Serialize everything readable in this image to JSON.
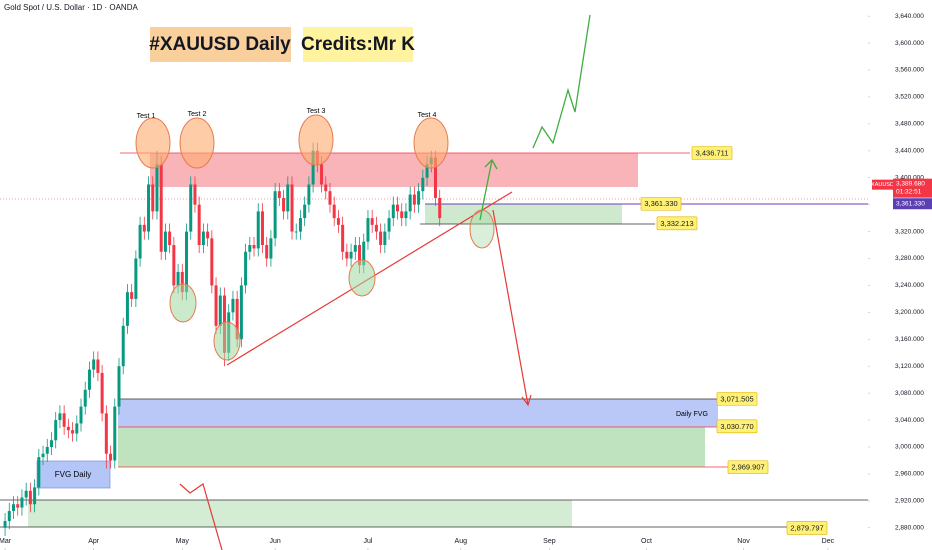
{
  "chart_data": {
    "type": "candlestick",
    "header": "Gold Spot / U.S. Dollar · 1D · OANDA",
    "title": "#XAUUSD Daily",
    "subtitle": "Credits:Mr K",
    "annotations": [
      "Test 1",
      "Test 2",
      "Test 3",
      "Test 4",
      "Daily FVG",
      "FVG Daily"
    ],
    "up_color": "#089981",
    "down_color": "#f23645",
    "grid": false,
    "xlim": [
      -1.2,
      204.5
    ],
    "ylim": [
      2847,
      3664
    ],
    "xticks": [
      {
        "value": 0,
        "label": "Mar"
      },
      {
        "value": 21,
        "label": "Apr"
      },
      {
        "value": 42,
        "label": "May"
      },
      {
        "value": 64,
        "label": "Jun"
      },
      {
        "value": 86,
        "label": "Jul"
      },
      {
        "value": 108,
        "label": "Aug"
      },
      {
        "value": 129,
        "label": "Sep"
      },
      {
        "value": 152,
        "label": "Oct"
      },
      {
        "value": 175,
        "label": "Nov"
      },
      {
        "value": 195,
        "label": "Dec"
      }
    ],
    "yticks": [
      {
        "value": 3640,
        "label": "3,640.000"
      },
      {
        "value": 3600,
        "label": "3,600.000"
      },
      {
        "value": 3560,
        "label": "3,560.000"
      },
      {
        "value": 3520,
        "label": "3,520.000"
      },
      {
        "value": 3480,
        "label": "3,480.000"
      },
      {
        "value": 3440,
        "label": "3,440.000"
      },
      {
        "value": 3400,
        "label": "3,400.000"
      },
      {
        "value": 3360,
        "label": "3,360.000"
      },
      {
        "value": 3320,
        "label": "3,320.000"
      },
      {
        "value": 3280,
        "label": "3,280.000"
      },
      {
        "value": 3240,
        "label": "3,240.000"
      },
      {
        "value": 3200,
        "label": "3,200.000"
      },
      {
        "value": 3160,
        "label": "3,160.000"
      },
      {
        "value": 3120,
        "label": "3,120.000"
      },
      {
        "value": 3080,
        "label": "3,080.000"
      },
      {
        "value": 3040,
        "label": "3,040.000"
      },
      {
        "value": 3000,
        "label": "3,000.000"
      },
      {
        "value": 2960,
        "label": "2,960.000"
      },
      {
        "value": 2920,
        "label": "2,920.000"
      },
      {
        "value": 2880,
        "label": "2,880.000"
      }
    ],
    "levels": [
      {
        "value": 3436.711,
        "label": "3,436.711"
      },
      {
        "value": 3361.33,
        "label": "3,361.330"
      },
      {
        "value": 3332.213,
        "label": "3,332.213"
      },
      {
        "value": 3071.505,
        "label": "3,071.505"
      },
      {
        "value": 3030.77,
        "label": "3,030.770"
      },
      {
        "value": 2969.907,
        "label": "2,969.907"
      },
      {
        "value": 2879.797,
        "label": "2,879.797"
      }
    ],
    "symbol": "XAUUSD",
    "last_price": {
      "value": 3389.68,
      "label": "3,389.680"
    },
    "countdown": "01:32:51",
    "line_price": {
      "value": 3361.33,
      "label": "3,361.330"
    },
    "candles": [
      [
        2880,
        2902,
        2868,
        2890
      ],
      [
        2890,
        2917,
        2878,
        2905
      ],
      [
        2905,
        2927,
        2893,
        2915
      ],
      [
        2915,
        2927,
        2898,
        2910
      ],
      [
        2910,
        2937,
        2898,
        2925
      ],
      [
        2925,
        2947,
        2913,
        2935
      ],
      [
        2935,
        2947,
        2903,
        2915
      ],
      [
        2915,
        2952,
        2903,
        2940
      ],
      [
        2940,
        2997,
        2928,
        2985
      ],
      [
        2985,
        3002,
        2973,
        2990
      ],
      [
        2990,
        3012,
        2978,
        3000
      ],
      [
        3000,
        3022,
        2988,
        3010
      ],
      [
        3010,
        3052,
        2998,
        3040
      ],
      [
        3040,
        3062,
        3028,
        3050
      ],
      [
        3050,
        3062,
        3018,
        3030
      ],
      [
        3030,
        3042,
        3013,
        3025
      ],
      [
        3025,
        3037,
        3008,
        3020
      ],
      [
        3020,
        3047,
        3008,
        3035
      ],
      [
        3035,
        3072,
        3023,
        3060
      ],
      [
        3060,
        3097,
        3048,
        3085
      ],
      [
        3085,
        3127,
        3073,
        3115
      ],
      [
        3115,
        3142,
        3103,
        3130
      ],
      [
        3130,
        3142,
        3098,
        3110
      ],
      [
        3110,
        3122,
        3038,
        3050
      ],
      [
        3050,
        3062,
        2968,
        2990
      ],
      [
        2990,
        3002,
        2968,
        2980
      ],
      [
        2980,
        3072,
        2968,
        3060
      ],
      [
        3060,
        3132,
        3048,
        3120
      ],
      [
        3120,
        3192,
        3108,
        3180
      ],
      [
        3180,
        3242,
        3168,
        3230
      ],
      [
        3230,
        3242,
        3208,
        3220
      ],
      [
        3220,
        3292,
        3208,
        3280
      ],
      [
        3280,
        3342,
        3268,
        3330
      ],
      [
        3330,
        3342,
        3308,
        3320
      ],
      [
        3320,
        3402,
        3308,
        3390
      ],
      [
        3390,
        3402,
        3338,
        3350
      ],
      [
        3350,
        3440,
        3338,
        3420
      ],
      [
        3420,
        3432,
        3278,
        3290
      ],
      [
        3290,
        3332,
        3278,
        3320
      ],
      [
        3320,
        3332,
        3288,
        3300
      ],
      [
        3300,
        3312,
        3228,
        3240
      ],
      [
        3240,
        3272,
        3228,
        3260
      ],
      [
        3260,
        3272,
        3218,
        3230
      ],
      [
        3230,
        3332,
        3218,
        3320
      ],
      [
        3320,
        3402,
        3308,
        3390
      ],
      [
        3390,
        3402,
        3348,
        3360
      ],
      [
        3360,
        3372,
        3288,
        3300
      ],
      [
        3300,
        3332,
        3288,
        3320
      ],
      [
        3320,
        3332,
        3298,
        3310
      ],
      [
        3310,
        3322,
        3228,
        3240
      ],
      [
        3240,
        3252,
        3168,
        3180
      ],
      [
        3180,
        3237,
        3168,
        3225
      ],
      [
        3225,
        3237,
        3120,
        3140
      ],
      [
        3140,
        3212,
        3128,
        3200
      ],
      [
        3200,
        3232,
        3188,
        3220
      ],
      [
        3220,
        3232,
        3148,
        3160
      ],
      [
        3160,
        3252,
        3148,
        3240
      ],
      [
        3240,
        3302,
        3228,
        3290
      ],
      [
        3290,
        3312,
        3278,
        3300
      ],
      [
        3300,
        3312,
        3283,
        3295
      ],
      [
        3295,
        3362,
        3283,
        3350
      ],
      [
        3350,
        3362,
        3288,
        3300
      ],
      [
        3300,
        3312,
        3268,
        3280
      ],
      [
        3280,
        3322,
        3268,
        3310
      ],
      [
        3310,
        3392,
        3298,
        3380
      ],
      [
        3380,
        3392,
        3358,
        3370
      ],
      [
        3370,
        3382,
        3338,
        3350
      ],
      [
        3350,
        3402,
        3338,
        3390
      ],
      [
        3390,
        3402,
        3308,
        3320
      ],
      [
        3320,
        3332,
        3308,
        3320
      ],
      [
        3320,
        3352,
        3308,
        3340
      ],
      [
        3340,
        3372,
        3328,
        3360
      ],
      [
        3360,
        3402,
        3348,
        3390
      ],
      [
        3390,
        3452,
        3378,
        3440
      ],
      [
        3440,
        3452,
        3408,
        3420
      ],
      [
        3420,
        3432,
        3378,
        3390
      ],
      [
        3390,
        3402,
        3368,
        3380
      ],
      [
        3380,
        3392,
        3348,
        3360
      ],
      [
        3360,
        3372,
        3328,
        3340
      ],
      [
        3340,
        3352,
        3318,
        3330
      ],
      [
        3330,
        3342,
        3278,
        3290
      ],
      [
        3290,
        3302,
        3268,
        3280
      ],
      [
        3280,
        3302,
        3268,
        3290
      ],
      [
        3290,
        3312,
        3278,
        3300
      ],
      [
        3300,
        3312,
        3258,
        3270
      ],
      [
        3270,
        3317,
        3258,
        3305
      ],
      [
        3305,
        3352,
        3293,
        3340
      ],
      [
        3340,
        3352,
        3318,
        3330
      ],
      [
        3330,
        3342,
        3308,
        3320
      ],
      [
        3320,
        3332,
        3288,
        3300
      ],
      [
        3300,
        3332,
        3288,
        3320
      ],
      [
        3320,
        3352,
        3308,
        3340
      ],
      [
        3340,
        3372,
        3328,
        3360
      ],
      [
        3360,
        3372,
        3338,
        3350
      ],
      [
        3350,
        3362,
        3328,
        3340
      ],
      [
        3340,
        3362,
        3328,
        3350
      ],
      [
        3350,
        3387,
        3338,
        3375
      ],
      [
        3375,
        3387,
        3348,
        3360
      ],
      [
        3360,
        3392,
        3348,
        3380
      ],
      [
        3380,
        3412,
        3368,
        3400
      ],
      [
        3400,
        3432,
        3388,
        3420
      ],
      [
        3420,
        3440,
        3408,
        3430
      ],
      [
        3430,
        3440,
        3358,
        3370
      ],
      [
        3370,
        3382,
        3328,
        3340
      ]
    ]
  }
}
